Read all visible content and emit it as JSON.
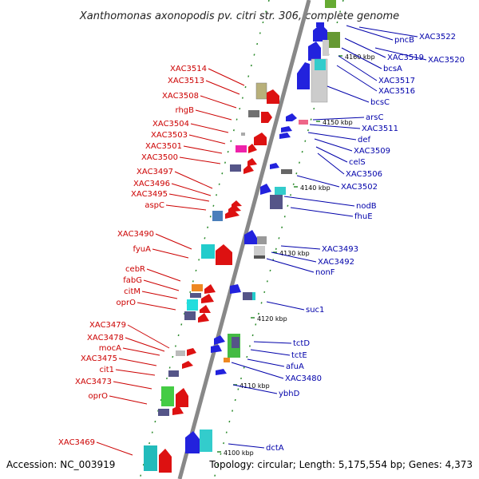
{
  "title": "Xanthomonas axonopodis pv. citri str. 306, complete genome",
  "footer": {
    "accession": "Accession: NC_003919",
    "summary": "Topology: circular; Length: 5,175,554 bp; Genes: 4,373"
  },
  "colors": {
    "left_label": "#cc0000",
    "right_label": "#0000aa",
    "backbone": "#888888",
    "tick": "#2a8a2a"
  },
  "kbp_marks": [
    "4160 kbp",
    "4150 kbp",
    "4140 kbp",
    "4130 kbp",
    "4120 kbp",
    "4110 kbp",
    "4100 kbp"
  ],
  "left_labels": [
    "XAC3514",
    "XAC3513",
    "XAC3508",
    "rhgB",
    "XAC3504",
    "XAC3503",
    "XAC3501",
    "XAC3500",
    "XAC3497",
    "XAC3496",
    "XAC3495",
    "aspC",
    "XAC3490",
    "fyuA",
    "cebR",
    "fabG",
    "citM",
    "oprO",
    "XAC3479",
    "XAC3478",
    "mocA",
    "XAC3475",
    "cit1",
    "XAC3473",
    "oprO",
    "XAC3469"
  ],
  "right_labels": [
    "pncB",
    "XAC3522",
    "XAC3519",
    "XAC3520",
    "bcsA",
    "XAC3517",
    "XAC3516",
    "bcsC",
    "arsC",
    "XAC3511",
    "def",
    "XAC3509",
    "celS",
    "XAC3506",
    "XAC3502",
    "nodB",
    "fhuE",
    "XAC3493",
    "XAC3492",
    "nonF",
    "suc1",
    "tctD",
    "tctE",
    "afuA",
    "XAC3480",
    "ybhD",
    "dctA"
  ]
}
